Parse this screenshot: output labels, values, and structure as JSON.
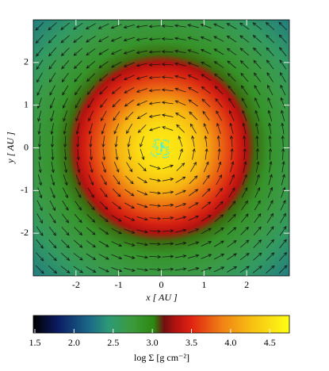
{
  "chart_data": {
    "type": "heatmap",
    "xlabel": "x [ AU ]",
    "ylabel": "y [ AU ]",
    "xlim": [
      -3,
      3
    ],
    "ylim": [
      -3,
      3
    ],
    "xticks": [
      -2,
      -1,
      0,
      1,
      2
    ],
    "yticks": [
      -2,
      -1,
      0,
      1,
      2
    ],
    "profile": {
      "radius": [
        0,
        0.5,
        1,
        1.5,
        1.8,
        2.0,
        2.2,
        2.5,
        3,
        3.5,
        4.25
      ],
      "log_sigma": [
        4.6,
        4.5,
        4.2,
        3.7,
        3.45,
        3.3,
        3.05,
        2.85,
        2.7,
        2.55,
        2.3
      ]
    },
    "vector_grid": 20,
    "rotation": "counterclockwise",
    "colorbar": {
      "label": "log Σ [g cm⁻²]",
      "clim": [
        1.48,
        4.75
      ],
      "ticks": [
        1.5,
        {
          "value": 2.0,
          "label": "2.0"
        },
        2.5,
        {
          "value": 3.0,
          "label": "3.0"
        },
        3.5,
        {
          "value": 4.0,
          "label": "4.0"
        },
        4.5
      ],
      "colormap": [
        {
          "value": 1.48,
          "color": "#000000"
        },
        {
          "value": 1.8,
          "color": "#0c1c64"
        },
        {
          "value": 2.2,
          "color": "#1b6a88"
        },
        {
          "value": 2.45,
          "color": "#2e9a74"
        },
        {
          "value": 2.75,
          "color": "#3c9a3a"
        },
        {
          "value": 3.02,
          "color": "#2b8810"
        },
        {
          "value": 3.15,
          "color": "#701010"
        },
        {
          "value": 3.3,
          "color": "#b21210"
        },
        {
          "value": 3.5,
          "color": "#e02412"
        },
        {
          "value": 3.9,
          "color": "#f08414"
        },
        {
          "value": 4.3,
          "color": "#f8c412"
        },
        {
          "value": 4.75,
          "color": "#ffff14"
        }
      ]
    }
  }
}
